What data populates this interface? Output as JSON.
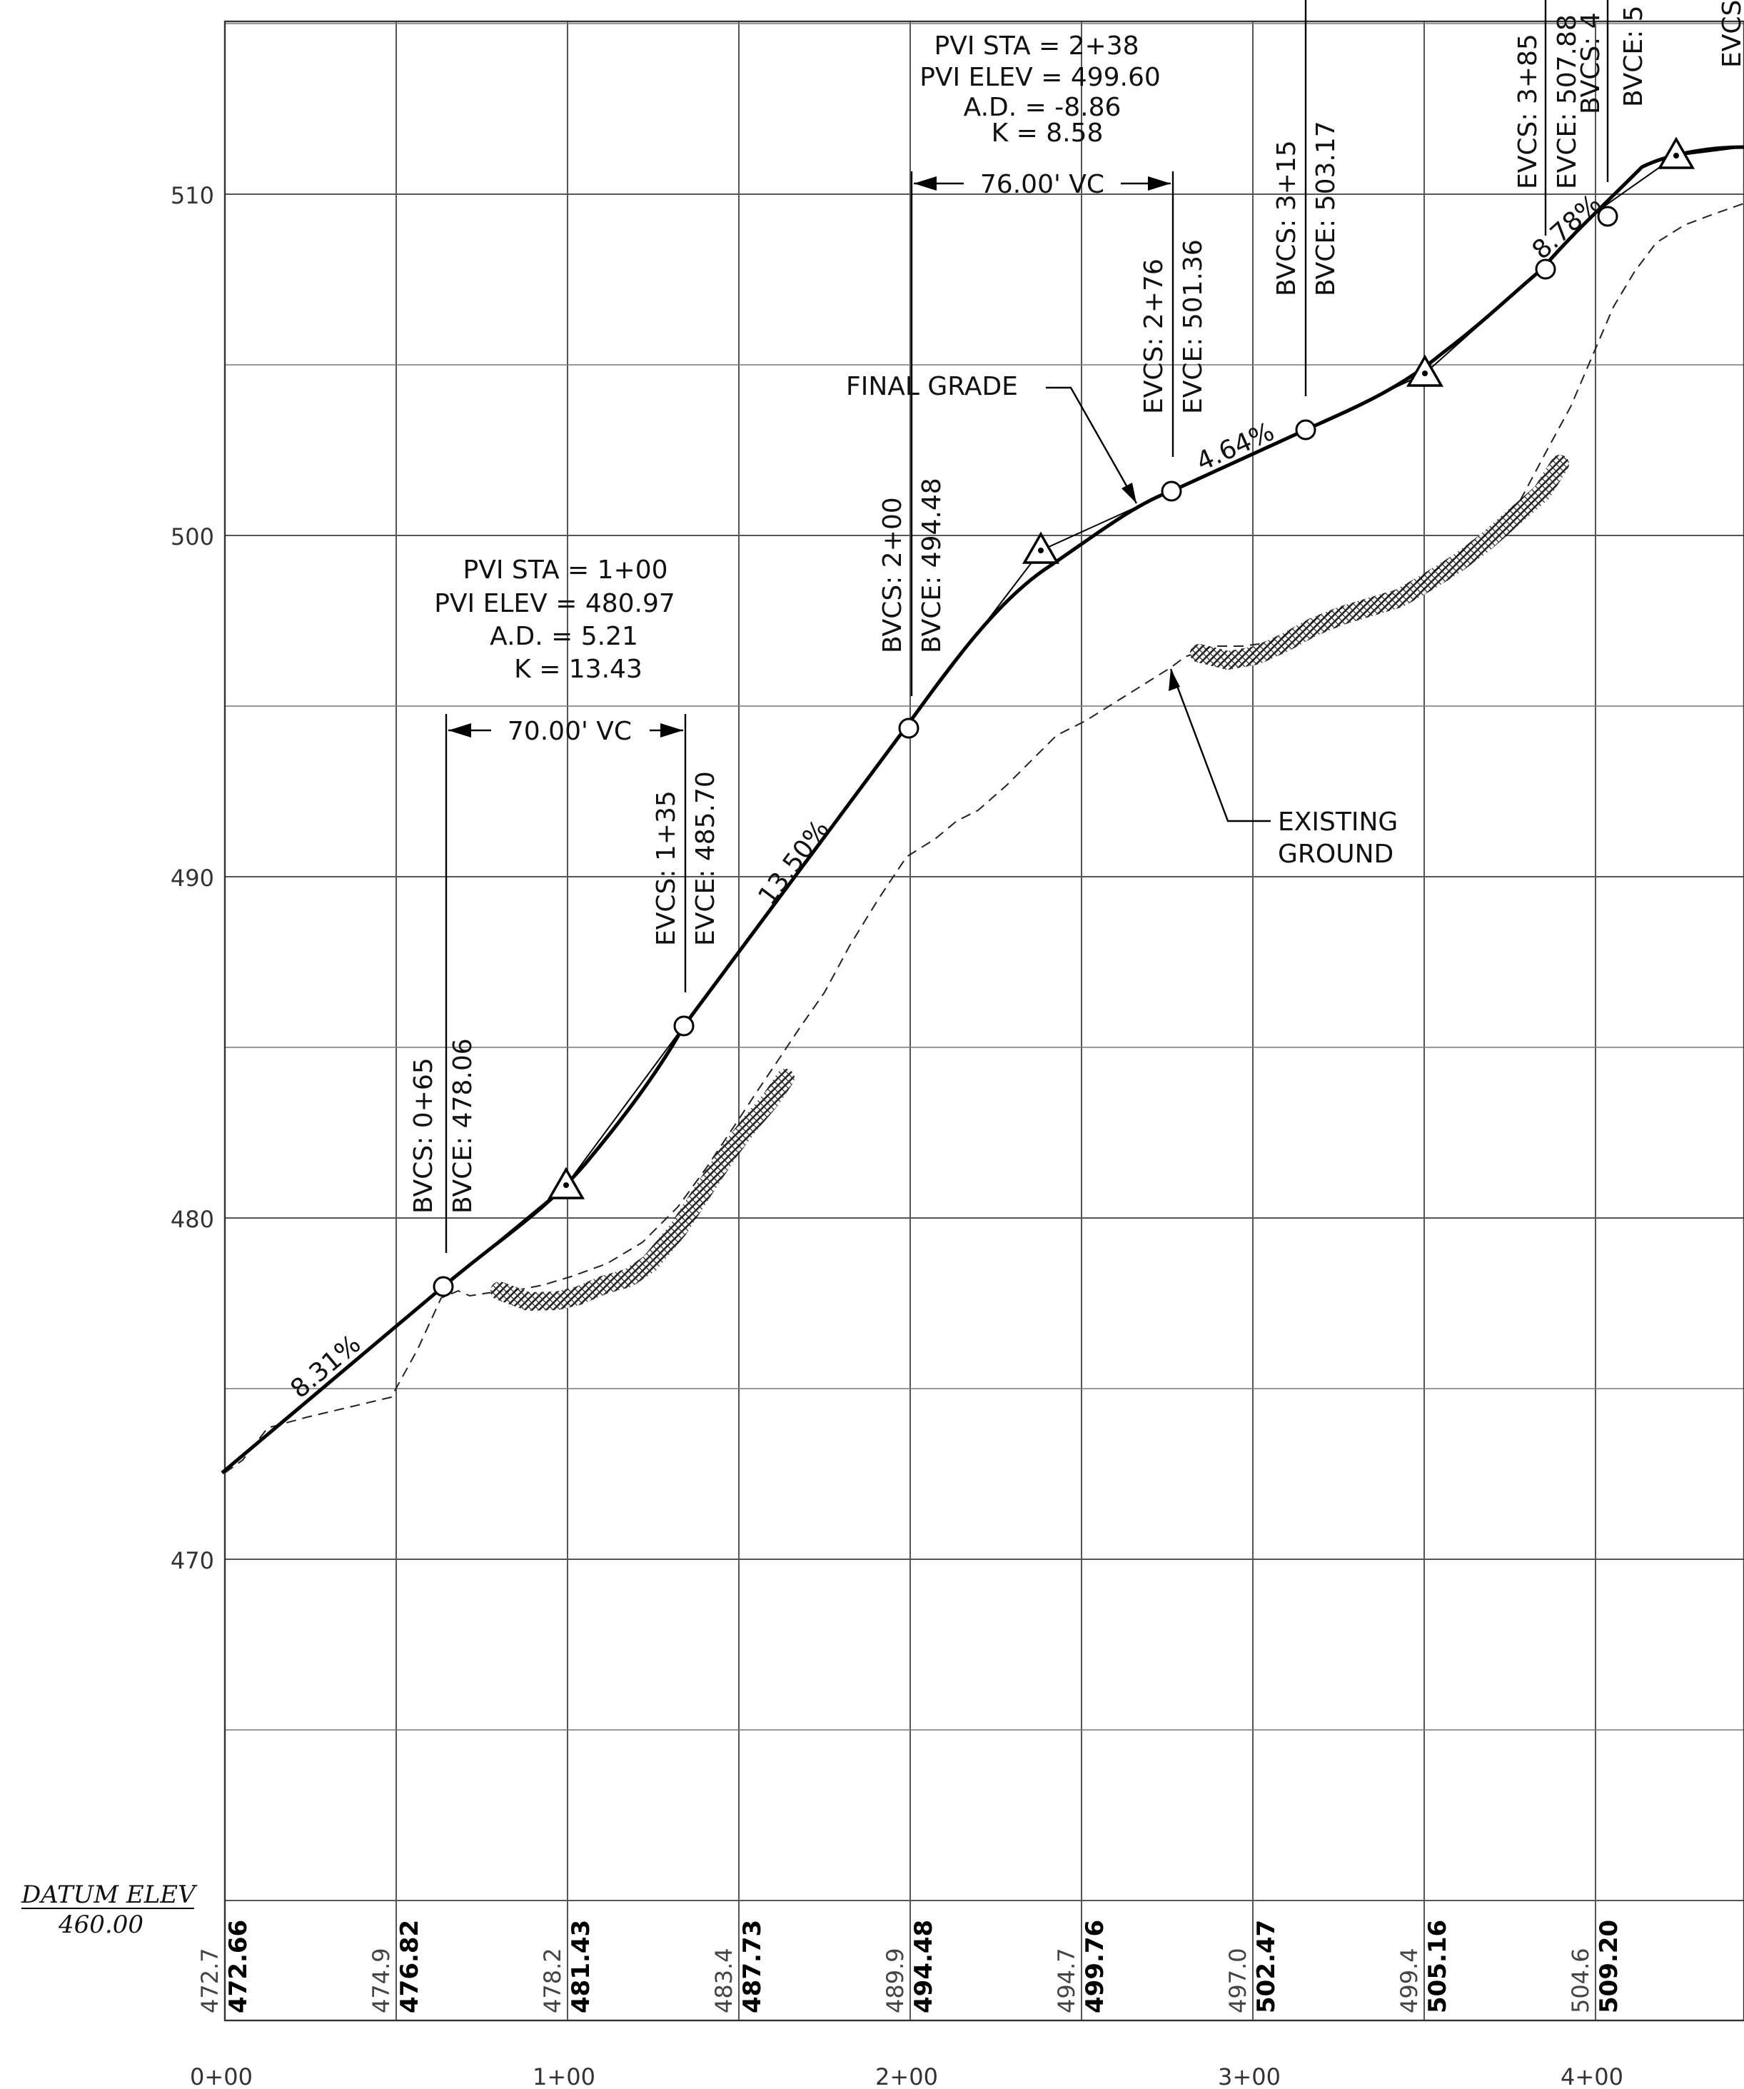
{
  "datum": {
    "label": "DATUM ELEV",
    "value": "460.00"
  },
  "y_axis_labels": [
    "510",
    "500",
    "490",
    "480",
    "470"
  ],
  "station_labels": [
    "0+00",
    "1+00",
    "2+00",
    "3+00",
    "4+00"
  ],
  "ground_elevations": [
    {
      "station": 0,
      "existing": "472.7",
      "proposed": "472.66"
    },
    {
      "station": 50,
      "existing": "474.9",
      "proposed": "476.82"
    },
    {
      "station": 100,
      "existing": "478.2",
      "proposed": "481.43"
    },
    {
      "station": 150,
      "existing": "483.4",
      "proposed": "487.73"
    },
    {
      "station": 200,
      "existing": "489.9",
      "proposed": "494.48"
    },
    {
      "station": 250,
      "existing": "494.7",
      "proposed": "499.76"
    },
    {
      "station": 300,
      "existing": "497.0",
      "proposed": "502.47"
    },
    {
      "station": 350,
      "existing": "499.4",
      "proposed": "505.16"
    },
    {
      "station": 400,
      "existing": "504.6",
      "proposed": "509.20"
    }
  ],
  "grades": [
    "8.31%",
    "13.50%",
    "4.64%",
    "8.78%"
  ],
  "pvi1": {
    "sta": "PVI STA = 1+00",
    "elev": "PVI ELEV = 480.97",
    "ad": "A.D. = 5.21",
    "k": "K = 13.43",
    "vc": "70.00' VC",
    "bvcs": "BVCS: 0+65",
    "bvce": "BVCE: 478.06",
    "evcs": "EVCS: 1+35",
    "evce": "EVCE: 485.70"
  },
  "pvi2": {
    "sta": "PVI STA = 2+38",
    "elev": "PVI ELEV = 499.60",
    "ad": "A.D. = -8.86",
    "k": "K = 8.58",
    "vc": "76.00' VC",
    "bvcs": "BVCS: 2+00",
    "bvce": "BVCE: 494.48",
    "evcs": "EVCS: 2+76",
    "evce": "EVCE: 501.36"
  },
  "pvi3": {
    "bvcs": "BVCS: 3+15",
    "bvce": "BVCE: 503.17"
  },
  "pvi4": {
    "evcs": "EVCS: 3+85",
    "evce": "EVCE: 507.88",
    "bvcs": "BVCS: 4",
    "bvce": "BVCE: 5",
    "evcs_cut": "EVCS"
  },
  "callouts": {
    "final_grade": "FINAL GRADE",
    "existing_1": "EXISTING",
    "existing_2": "GROUND"
  }
}
